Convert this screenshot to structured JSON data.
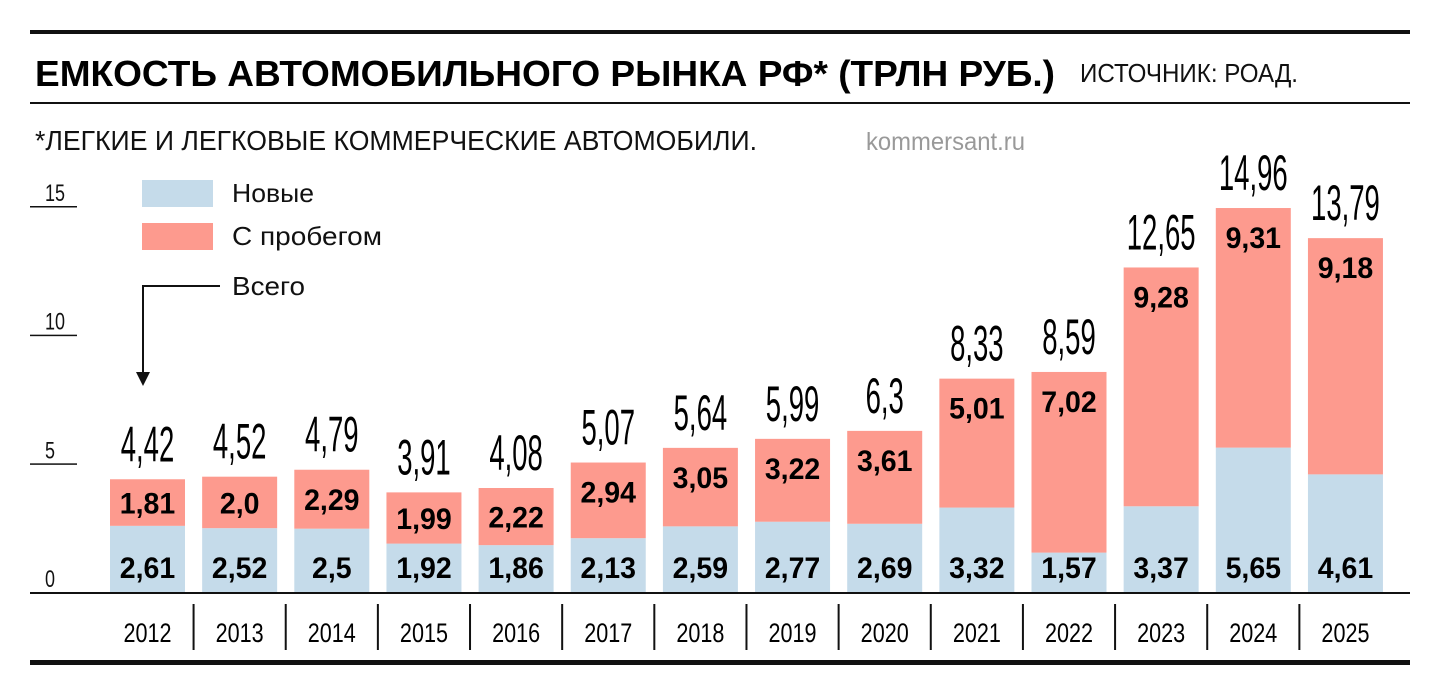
{
  "header": {
    "title": "ЕМКОСТЬ АВТОМОБИЛЬНОГО РЫНКА РФ* (ТРЛН РУБ.)",
    "source": "ИСТОЧНИК: РОАД.",
    "footnote": "*ЛЕГКИЕ И ЛЕГКОВЫЕ КОММЕРЧЕСКИЕ АВТОМОБИЛИ.",
    "watermark": "kommersant.ru"
  },
  "chart_data": {
    "type": "bar",
    "stacked": true,
    "title": "ЕМКОСТЬ АВТОМОБИЛЬНОГО РЫНКА РФ* (ТРЛН РУБ.)",
    "categories": [
      "2012",
      "2013",
      "2014",
      "2015",
      "2016",
      "2017",
      "2018",
      "2019",
      "2020",
      "2021",
      "2022",
      "2023",
      "2024",
      "2025"
    ],
    "series": [
      {
        "name": "Новые",
        "color": "#c5dbea",
        "values": [
          2.61,
          2.52,
          2.5,
          1.92,
          1.86,
          2.13,
          2.59,
          2.77,
          2.69,
          3.32,
          1.57,
          3.37,
          5.65,
          4.61
        ],
        "labels": [
          "2,61",
          "2,52",
          "2,5",
          "1,92",
          "1,86",
          "2,13",
          "2,59",
          "2,77",
          "2,69",
          "3,32",
          "1,57",
          "3,37",
          "5,65",
          "4,61"
        ]
      },
      {
        "name": "С пробегом",
        "color": "#fd9a8e",
        "values": [
          1.81,
          2.0,
          2.29,
          1.99,
          2.22,
          2.94,
          3.05,
          3.22,
          3.61,
          5.01,
          7.02,
          9.28,
          9.31,
          9.18
        ],
        "labels": [
          "1,81",
          "2,0",
          "2,29",
          "1,99",
          "2,22",
          "2,94",
          "3,05",
          "3,22",
          "3,61",
          "5,01",
          "7,02",
          "9,28",
          "9,31",
          "9,18"
        ]
      }
    ],
    "totals": {
      "name": "Всего",
      "values": [
        4.42,
        4.52,
        4.79,
        3.91,
        4.08,
        5.07,
        5.64,
        5.99,
        6.3,
        8.33,
        8.59,
        12.65,
        14.96,
        13.79
      ],
      "labels": [
        "4,42",
        "4,52",
        "4,79",
        "3,91",
        "4,08",
        "5,07",
        "5,64",
        "5,99",
        "6,3",
        "8,33",
        "8,59",
        "12,65",
        "14,96",
        "13,79"
      ]
    },
    "yticks": [
      "0",
      "5",
      "10",
      "15"
    ],
    "ylim": [
      0,
      15
    ],
    "grid": false,
    "legend": "top-left"
  }
}
